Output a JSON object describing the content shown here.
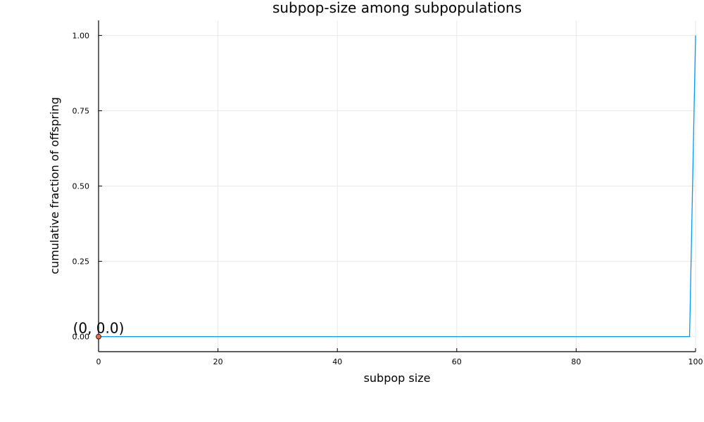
{
  "chart_data": {
    "type": "line",
    "title": "subpop-size among subpopulations",
    "xlabel": "subpop size",
    "ylabel": "cumulative fraction of offspring",
    "xlim": [
      0,
      100
    ],
    "ylim": [
      -0.05,
      1.05
    ],
    "xticks": [
      0,
      20,
      40,
      60,
      80,
      100
    ],
    "xtick_labels": [
      "0",
      "20",
      "40",
      "60",
      "80",
      "100"
    ],
    "yticks": [
      0,
      0.25,
      0.5,
      0.75,
      1.0
    ],
    "ytick_labels": [
      "0.00",
      "0.25",
      "0.50",
      "0.75",
      "1.00"
    ],
    "grid": true,
    "legend": "none",
    "series": [
      {
        "color": "#009af9",
        "x": [
          0,
          99,
          100
        ],
        "y": [
          0.0,
          0.0,
          1.0
        ]
      }
    ],
    "points": [
      {
        "x": 0,
        "y": 0.0,
        "color": "#e26f46"
      }
    ],
    "annotations": [
      {
        "text": "(0, 0.0)",
        "x": 0,
        "y": 0.0
      }
    ]
  }
}
